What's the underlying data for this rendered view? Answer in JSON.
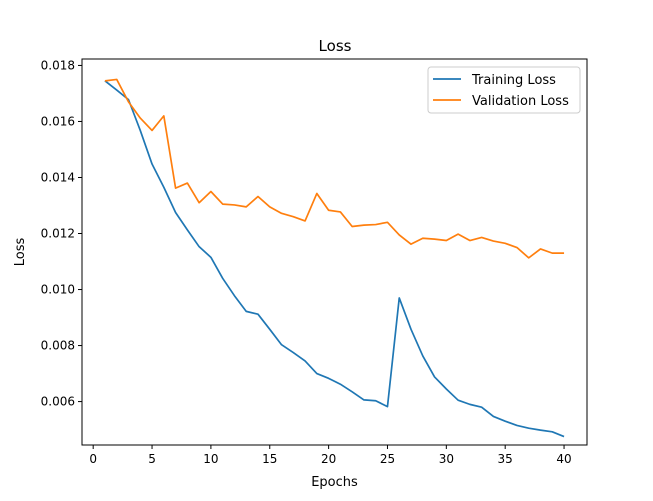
{
  "chart_data": {
    "type": "line",
    "title": "Loss",
    "xlabel": "Epochs",
    "ylabel": "Loss",
    "xlim": [
      -0.95,
      41.95
    ],
    "ylim": [
      0.00445,
      0.01823
    ],
    "xticks": [
      0,
      5,
      10,
      15,
      20,
      25,
      30,
      35,
      40
    ],
    "xtick_labels": [
      "0",
      "5",
      "10",
      "15",
      "20",
      "25",
      "30",
      "35",
      "40"
    ],
    "yticks": [
      0.006,
      0.008,
      0.01,
      0.012,
      0.014,
      0.016,
      0.018
    ],
    "ytick_labels": [
      "0.006",
      "0.008",
      "0.010",
      "0.012",
      "0.014",
      "0.016",
      "0.018"
    ],
    "grid": false,
    "legend": "top-right",
    "x": [
      1,
      2,
      3,
      4,
      5,
      6,
      7,
      8,
      9,
      10,
      11,
      12,
      13,
      14,
      15,
      16,
      17,
      18,
      19,
      20,
      21,
      22,
      23,
      24,
      25,
      26,
      27,
      28,
      29,
      30,
      31,
      32,
      33,
      34,
      35,
      36,
      37,
      38,
      39,
      40
    ],
    "series": [
      {
        "name": "Training Loss",
        "color": "#1f77b4",
        "values": [
          0.01745,
          0.01712,
          0.01678,
          0.01568,
          0.01448,
          0.01365,
          0.01275,
          0.01213,
          0.01153,
          0.01115,
          0.0104,
          0.00978,
          0.00922,
          0.00912,
          0.00858,
          0.00803,
          0.00775,
          0.00745,
          0.007,
          0.00683,
          0.00662,
          0.00635,
          0.00606,
          0.00603,
          0.00582,
          0.0097,
          0.00858,
          0.00763,
          0.00688,
          0.00645,
          0.00605,
          0.0059,
          0.0058,
          0.00547,
          0.0053,
          0.00515,
          0.00505,
          0.00498,
          0.00492,
          0.00475
        ]
      },
      {
        "name": "Validation Loss",
        "color": "#ff7f0e",
        "values": [
          0.01745,
          0.0175,
          0.0167,
          0.01612,
          0.01568,
          0.0162,
          0.01362,
          0.0138,
          0.0131,
          0.0135,
          0.01305,
          0.01302,
          0.01295,
          0.01332,
          0.01295,
          0.01272,
          0.0126,
          0.01245,
          0.01343,
          0.01283,
          0.01277,
          0.01225,
          0.0123,
          0.01232,
          0.0124,
          0.01195,
          0.01162,
          0.01183,
          0.0118,
          0.01175,
          0.01198,
          0.01175,
          0.01186,
          0.01173,
          0.01165,
          0.0115,
          0.01113,
          0.01145,
          0.0113,
          0.0113
        ]
      }
    ]
  }
}
